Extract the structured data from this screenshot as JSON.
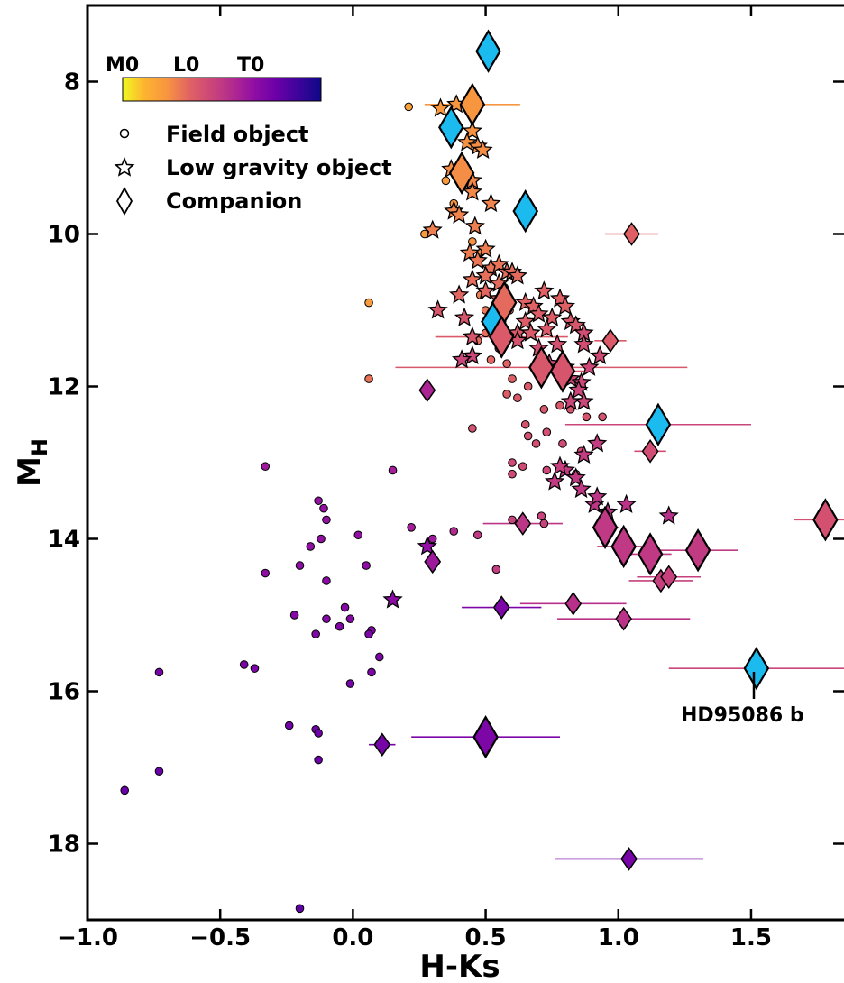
{
  "chart_data": {
    "type": "scatter",
    "xlabel": "H-Ks",
    "ylabel": {
      "main": "M",
      "sub": "H"
    },
    "xlim": [
      -1.0,
      1.85
    ],
    "ylim": [
      19.0,
      7.0
    ],
    "y_inverted": true,
    "x_ticks": [
      -1.0,
      -0.5,
      0.0,
      0.5,
      1.0,
      1.5
    ],
    "x_tick_labels": [
      "−1.0",
      "−0.5",
      "0.0",
      "0.5",
      "1.0",
      "1.5"
    ],
    "y_ticks": [
      8,
      10,
      12,
      14,
      16,
      18
    ],
    "y_tick_labels": [
      "8",
      "10",
      "12",
      "14",
      "16",
      "18"
    ],
    "grid": false,
    "colorbar": {
      "labels": [
        "M0",
        "L0",
        "T0"
      ],
      "colormap": "plasma_r",
      "stops": [
        "#f0f921",
        "#fdb32f",
        "#f89540",
        "#e16462",
        "#cc4778",
        "#b12a90",
        "#8f0da4",
        "#6a00a8",
        "#3c049b",
        "#0d0887"
      ]
    },
    "legend": {
      "placement": "top-left",
      "entries": [
        {
          "marker": "circle",
          "label": "Field object"
        },
        {
          "marker": "star",
          "label": "Low gravity object"
        },
        {
          "marker": "diamond",
          "label": "Companion"
        }
      ]
    },
    "annotation": {
      "text": "HD95086 b",
      "x": 1.52,
      "y": 15.7
    },
    "highlight_color": "#1bbaef",
    "field_objects": [
      [
        0.21,
        8.33,
        0.18
      ],
      [
        0.06,
        10.9,
        0.2
      ],
      [
        0.06,
        11.9,
        0.3
      ],
      [
        0.27,
        10.0,
        0.2
      ],
      [
        0.35,
        9.3,
        0.2
      ],
      [
        0.38,
        9.6,
        0.22
      ],
      [
        0.45,
        10.1,
        0.23
      ],
      [
        0.48,
        10.25,
        0.24
      ],
      [
        0.52,
        10.45,
        0.25
      ],
      [
        0.48,
        10.8,
        0.28
      ],
      [
        0.5,
        11.0,
        0.29
      ],
      [
        0.53,
        11.1,
        0.3
      ],
      [
        0.47,
        11.4,
        0.32
      ],
      [
        0.55,
        11.5,
        0.33
      ],
      [
        0.52,
        11.65,
        0.33
      ],
      [
        0.58,
        11.7,
        0.34
      ],
      [
        0.6,
        11.9,
        0.35
      ],
      [
        0.58,
        12.1,
        0.36
      ],
      [
        0.62,
        12.15,
        0.37
      ],
      [
        0.66,
        12.0,
        0.37
      ],
      [
        0.7,
        11.85,
        0.37
      ],
      [
        0.72,
        12.3,
        0.38
      ],
      [
        0.78,
        12.25,
        0.38
      ],
      [
        0.82,
        12.3,
        0.39
      ],
      [
        0.88,
        12.4,
        0.39
      ],
      [
        0.94,
        12.4,
        0.4
      ],
      [
        0.65,
        12.5,
        0.4
      ],
      [
        0.45,
        12.55,
        0.4
      ],
      [
        0.66,
        12.65,
        0.41
      ],
      [
        0.73,
        12.6,
        0.41
      ],
      [
        0.69,
        12.75,
        0.41
      ],
      [
        0.79,
        12.75,
        0.42
      ],
      [
        0.86,
        12.85,
        0.42
      ],
      [
        0.6,
        13.0,
        0.43
      ],
      [
        0.64,
        13.05,
        0.43
      ],
      [
        0.6,
        13.15,
        0.43
      ],
      [
        0.73,
        13.1,
        0.44
      ],
      [
        0.84,
        13.15,
        0.44
      ],
      [
        0.86,
        13.35,
        0.45
      ],
      [
        0.71,
        13.7,
        0.46
      ],
      [
        0.72,
        13.8,
        0.46
      ],
      [
        0.6,
        13.75,
        0.46
      ],
      [
        0.54,
        14.4,
        0.48
      ],
      [
        0.47,
        13.95,
        0.5
      ],
      [
        0.38,
        13.9,
        0.55
      ],
      [
        0.22,
        13.85,
        0.6
      ],
      [
        0.3,
        14.0,
        0.62
      ],
      [
        0.15,
        13.1,
        0.6
      ],
      [
        -0.33,
        13.05,
        0.62
      ],
      [
        -0.13,
        13.5,
        0.65
      ],
      [
        -0.11,
        13.6,
        0.65
      ],
      [
        -0.1,
        13.75,
        0.65
      ],
      [
        -0.12,
        14.0,
        0.66
      ],
      [
        -0.16,
        14.1,
        0.66
      ],
      [
        0.02,
        13.95,
        0.66
      ],
      [
        -0.2,
        14.35,
        0.67
      ],
      [
        0.05,
        14.35,
        0.67
      ],
      [
        -0.33,
        14.45,
        0.67
      ],
      [
        -0.1,
        14.55,
        0.68
      ],
      [
        -0.22,
        15.0,
        0.7
      ],
      [
        -0.03,
        14.9,
        0.7
      ],
      [
        -0.1,
        15.05,
        0.7
      ],
      [
        -0.01,
        15.05,
        0.7
      ],
      [
        -0.05,
        15.15,
        0.71
      ],
      [
        -0.14,
        15.25,
        0.71
      ],
      [
        0.07,
        15.2,
        0.71
      ],
      [
        0.06,
        15.25,
        0.72
      ],
      [
        0.1,
        15.55,
        0.72
      ],
      [
        0.07,
        15.75,
        0.72
      ],
      [
        -0.41,
        15.65,
        0.73
      ],
      [
        -0.37,
        15.7,
        0.73
      ],
      [
        -0.01,
        15.9,
        0.74
      ],
      [
        -0.73,
        15.75,
        0.74
      ],
      [
        -0.24,
        16.45,
        0.76
      ],
      [
        -0.14,
        16.5,
        0.76
      ],
      [
        -0.13,
        16.55,
        0.76
      ],
      [
        -0.13,
        16.9,
        0.77
      ],
      [
        -0.73,
        17.05,
        0.78
      ],
      [
        -0.86,
        17.3,
        0.78
      ],
      [
        -0.2,
        18.85,
        0.8
      ],
      [
        0.5,
        11.3,
        0.31
      ],
      [
        0.55,
        11.45,
        0.33
      ],
      [
        0.57,
        10.7,
        0.27
      ],
      [
        0.59,
        11.0,
        0.29
      ]
    ],
    "low_gravity_objects": [
      [
        0.39,
        8.3,
        0.22
      ],
      [
        0.45,
        8.65,
        0.23
      ],
      [
        0.43,
        8.8,
        0.23
      ],
      [
        0.47,
        8.85,
        0.24
      ],
      [
        0.49,
        8.9,
        0.24
      ],
      [
        0.37,
        9.15,
        0.24
      ],
      [
        0.42,
        9.25,
        0.25
      ],
      [
        0.45,
        9.3,
        0.25
      ],
      [
        0.45,
        9.45,
        0.25
      ],
      [
        0.52,
        9.6,
        0.26
      ],
      [
        0.38,
        9.7,
        0.26
      ],
      [
        0.4,
        9.75,
        0.26
      ],
      [
        0.3,
        9.95,
        0.27
      ],
      [
        0.46,
        9.9,
        0.27
      ],
      [
        0.5,
        10.2,
        0.28
      ],
      [
        0.44,
        10.25,
        0.28
      ],
      [
        0.47,
        10.35,
        0.29
      ],
      [
        0.52,
        10.45,
        0.3
      ],
      [
        0.55,
        10.4,
        0.3
      ],
      [
        0.58,
        10.5,
        0.31
      ],
      [
        0.5,
        10.55,
        0.31
      ],
      [
        0.45,
        10.6,
        0.31
      ],
      [
        0.55,
        10.65,
        0.32
      ],
      [
        0.6,
        10.5,
        0.32
      ],
      [
        0.62,
        10.55,
        0.32
      ],
      [
        0.5,
        10.75,
        0.33
      ],
      [
        0.55,
        10.85,
        0.33
      ],
      [
        0.4,
        10.8,
        0.33
      ],
      [
        0.65,
        10.9,
        0.34
      ],
      [
        0.68,
        10.95,
        0.34
      ],
      [
        0.72,
        10.75,
        0.34
      ],
      [
        0.78,
        10.85,
        0.35
      ],
      [
        0.8,
        10.95,
        0.35
      ],
      [
        0.7,
        11.05,
        0.36
      ],
      [
        0.75,
        11.1,
        0.36
      ],
      [
        0.65,
        11.15,
        0.36
      ],
      [
        0.62,
        11.3,
        0.37
      ],
      [
        0.67,
        11.3,
        0.37
      ],
      [
        0.73,
        11.25,
        0.37
      ],
      [
        0.82,
        11.15,
        0.38
      ],
      [
        0.84,
        11.2,
        0.38
      ],
      [
        0.32,
        11.0,
        0.38
      ],
      [
        0.42,
        11.1,
        0.39
      ],
      [
        0.45,
        11.35,
        0.39
      ],
      [
        0.62,
        11.4,
        0.4
      ],
      [
        0.7,
        11.5,
        0.41
      ],
      [
        0.77,
        11.45,
        0.41
      ],
      [
        0.87,
        11.3,
        0.42
      ],
      [
        0.87,
        11.45,
        0.42
      ],
      [
        0.93,
        11.6,
        0.43
      ],
      [
        0.8,
        11.75,
        0.43
      ],
      [
        0.74,
        11.7,
        0.43
      ],
      [
        0.89,
        11.75,
        0.44
      ],
      [
        0.82,
        11.9,
        0.44
      ],
      [
        0.86,
        11.95,
        0.44
      ],
      [
        0.85,
        12.05,
        0.45
      ],
      [
        0.87,
        12.2,
        0.45
      ],
      [
        0.82,
        12.2,
        0.45
      ],
      [
        0.45,
        11.6,
        0.45
      ],
      [
        0.41,
        11.65,
        0.45
      ],
      [
        0.92,
        12.75,
        0.48
      ],
      [
        0.87,
        12.9,
        0.48
      ],
      [
        0.8,
        13.1,
        0.49
      ],
      [
        0.76,
        13.25,
        0.49
      ],
      [
        0.84,
        13.2,
        0.49
      ],
      [
        0.86,
        13.35,
        0.5
      ],
      [
        0.91,
        13.55,
        0.51
      ],
      [
        0.92,
        13.45,
        0.51
      ],
      [
        0.96,
        13.65,
        0.52
      ],
      [
        1.03,
        13.55,
        0.52
      ],
      [
        1.19,
        13.7,
        0.53
      ],
      [
        0.78,
        13.05,
        0.47
      ],
      [
        0.28,
        14.1,
        0.66
      ],
      [
        0.15,
        14.8,
        0.68
      ],
      [
        0.33,
        8.35,
        0.21
      ]
    ],
    "companions": [
      {
        "x": 0.51,
        "y": 7.6,
        "highlight": true,
        "size": "large"
      },
      {
        "x": 0.37,
        "y": 8.6,
        "highlight": true,
        "size": "large"
      },
      {
        "x": 0.65,
        "y": 9.7,
        "highlight": true,
        "size": "large"
      },
      {
        "x": 0.53,
        "y": 11.15,
        "highlight": true,
        "size": "large"
      },
      {
        "x": 1.15,
        "y": 12.5,
        "highlight": true,
        "size": "large",
        "xerr": 0.35
      },
      {
        "x": 1.52,
        "y": 15.7,
        "highlight": true,
        "size": "large",
        "xerr": 0.33
      },
      {
        "x": 0.45,
        "y": 8.3,
        "c": 0.22,
        "size": "large",
        "xerr": 0.18
      },
      {
        "x": 0.41,
        "y": 9.2,
        "c": 0.24,
        "size": "large"
      },
      {
        "x": 1.05,
        "y": 10.0,
        "c": 0.35,
        "size": "small",
        "xerr": 0.1
      },
      {
        "x": 0.57,
        "y": 10.9,
        "c": 0.32,
        "size": "large"
      },
      {
        "x": 0.97,
        "y": 11.4,
        "c": 0.37,
        "size": "small",
        "xerr": 0.06
      },
      {
        "x": 0.71,
        "y": 11.75,
        "c": 0.38,
        "size": "large",
        "xerr": 0.55
      },
      {
        "x": 0.79,
        "y": 11.8,
        "c": 0.39,
        "size": "large",
        "xerr": 0.1
      },
      {
        "x": 0.56,
        "y": 11.35,
        "c": 0.37,
        "size": "large",
        "xerr": 0.25
      },
      {
        "x": 1.12,
        "y": 12.85,
        "c": 0.42,
        "size": "small",
        "xerr": 0.06
      },
      {
        "x": 0.28,
        "y": 12.05,
        "c": 0.58,
        "size": "small"
      },
      {
        "x": 0.95,
        "y": 13.85,
        "c": 0.5,
        "size": "large",
        "xerr": 0.05
      },
      {
        "x": 1.02,
        "y": 14.1,
        "c": 0.5,
        "size": "large",
        "xerr": 0.1
      },
      {
        "x": 1.12,
        "y": 14.2,
        "c": 0.5,
        "size": "large",
        "xerr": 0.08
      },
      {
        "x": 1.3,
        "y": 14.15,
        "c": 0.49,
        "size": "large",
        "xerr": 0.15
      },
      {
        "x": 1.78,
        "y": 13.75,
        "c": 0.41,
        "size": "large",
        "xerr": 0.12
      },
      {
        "x": 0.64,
        "y": 13.8,
        "c": 0.51,
        "size": "small",
        "xerr": 0.15
      },
      {
        "x": 1.16,
        "y": 14.55,
        "c": 0.47,
        "size": "small",
        "xerr": 0.12
      },
      {
        "x": 1.19,
        "y": 14.5,
        "c": 0.47,
        "size": "small",
        "xerr": 0.12
      },
      {
        "x": 0.83,
        "y": 14.85,
        "c": 0.53,
        "size": "small",
        "xerr": 0.2
      },
      {
        "x": 1.02,
        "y": 15.05,
        "c": 0.52,
        "size": "small",
        "xerr": 0.25
      },
      {
        "x": 0.3,
        "y": 14.3,
        "c": 0.62,
        "size": "small"
      },
      {
        "x": 0.56,
        "y": 14.9,
        "c": 0.72,
        "size": "small",
        "xerr": 0.15
      },
      {
        "x": 0.11,
        "y": 16.7,
        "c": 0.74,
        "size": "small",
        "xerr": 0.05
      },
      {
        "x": 0.5,
        "y": 16.6,
        "c": 0.72,
        "size": "large",
        "xerr": 0.28
      },
      {
        "x": 1.04,
        "y": 18.2,
        "c": 0.74,
        "size": "small",
        "xerr": 0.28
      }
    ]
  }
}
